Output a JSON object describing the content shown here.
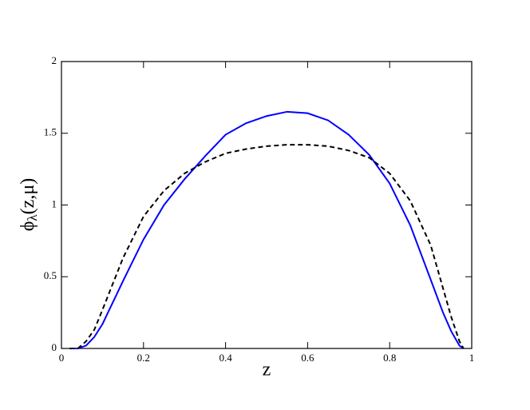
{
  "chart_data": {
    "type": "line",
    "xlabel": "z",
    "ylabel": {
      "symbol": "ϕ",
      "subscript": "λ",
      "args": "(z,μ)"
    },
    "x": [
      0.02,
      0.04,
      0.06,
      0.08,
      0.1,
      0.15,
      0.2,
      0.25,
      0.3,
      0.35,
      0.4,
      0.45,
      0.5,
      0.55,
      0.6,
      0.65,
      0.7,
      0.75,
      0.8,
      0.85,
      0.9,
      0.93,
      0.95,
      0.97,
      0.98
    ],
    "series": [
      {
        "color": "#0000ff",
        "style": "solid",
        "values": [
          0,
          0,
          0.02,
          0.08,
          0.17,
          0.47,
          0.76,
          1.0,
          1.18,
          1.34,
          1.49,
          1.57,
          1.62,
          1.65,
          1.64,
          1.59,
          1.49,
          1.35,
          1.15,
          0.86,
          0.48,
          0.25,
          0.12,
          0.02,
          0
        ]
      },
      {
        "color": "#000000",
        "style": "dashed",
        "values": [
          0,
          0,
          0.05,
          0.13,
          0.27,
          0.63,
          0.92,
          1.1,
          1.22,
          1.3,
          1.36,
          1.39,
          1.41,
          1.42,
          1.42,
          1.41,
          1.38,
          1.33,
          1.22,
          1.03,
          0.72,
          0.42,
          0.22,
          0.05,
          0
        ]
      }
    ],
    "xlim": [
      0,
      1
    ],
    "xticks": [
      0,
      0.2,
      0.4,
      0.6,
      0.8,
      1
    ],
    "ylim": [
      0,
      2
    ],
    "yticks": [
      0,
      0.5,
      1,
      1.5,
      2
    ]
  }
}
